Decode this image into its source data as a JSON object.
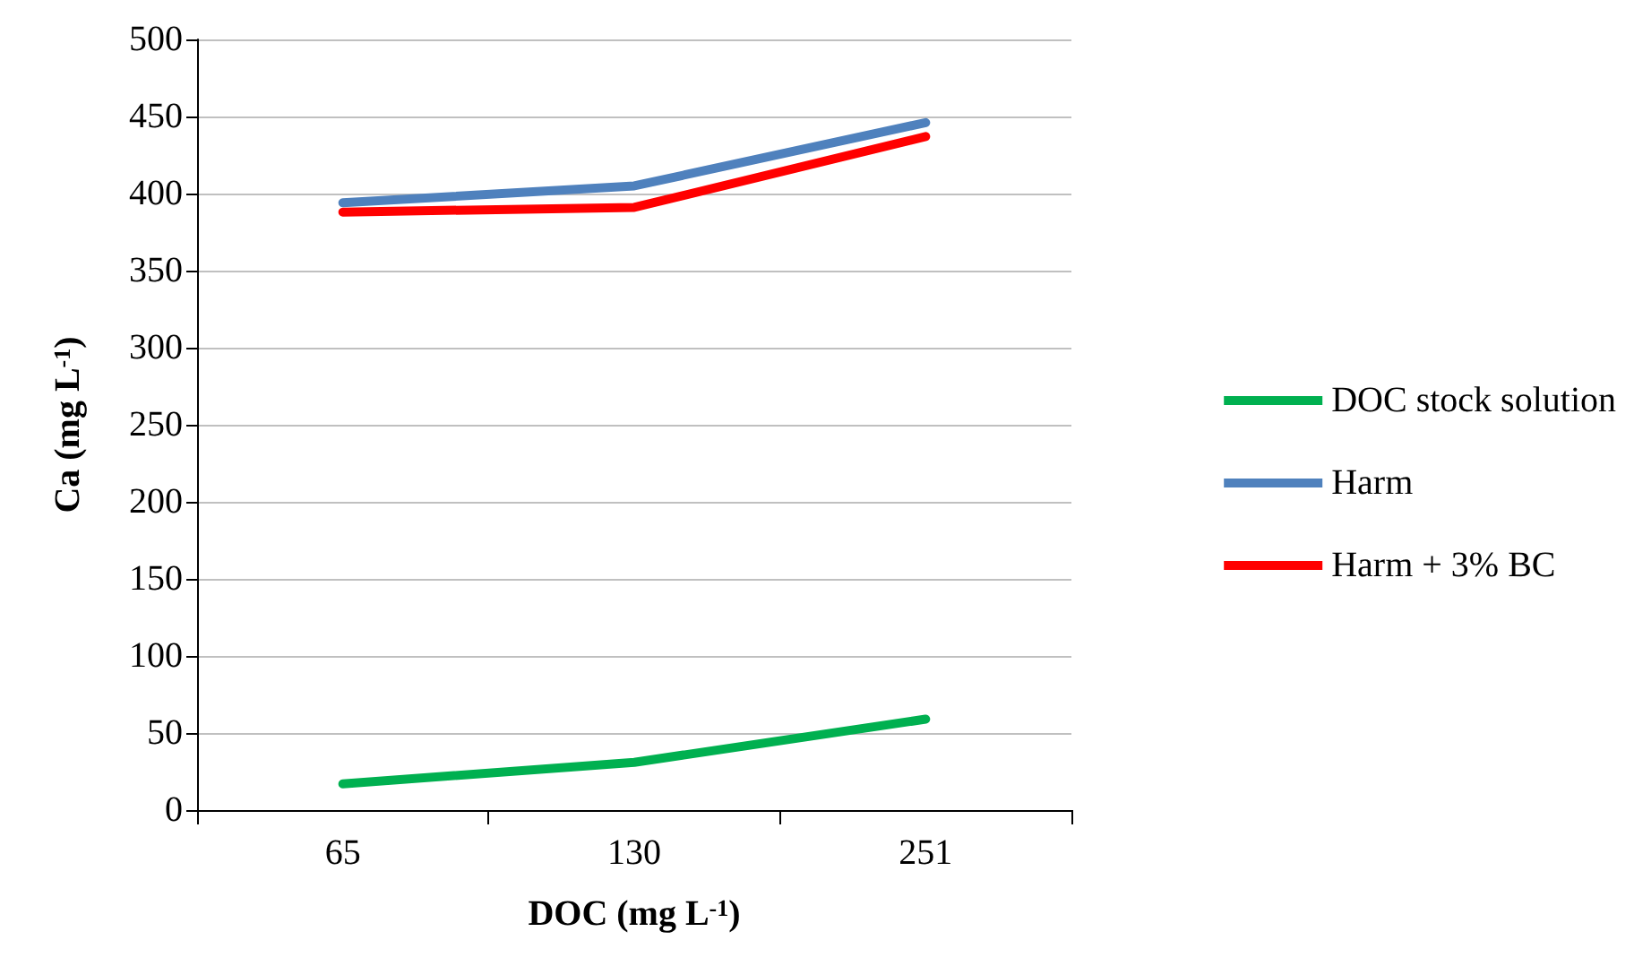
{
  "chart_data": {
    "type": "line",
    "xlabel": "DOC (mg L$^{-1}$)",
    "ylabel": "Ca (mg L$^{-1}$)",
    "categories": [
      "65",
      "130",
      "251"
    ],
    "series": [
      {
        "name": "DOC stock solution",
        "color": "#00b050",
        "values": [
          17,
          31,
          59
        ]
      },
      {
        "name": "Harm",
        "color": "#4f81bd",
        "values": [
          394,
          405,
          446
        ]
      },
      {
        "name": "Harm + 3% BC",
        "color": "#ff0000",
        "values": [
          388,
          391,
          437
        ]
      }
    ],
    "ylim": [
      0,
      500
    ],
    "yticks": [
      0,
      50,
      100,
      150,
      200,
      250,
      300,
      350,
      400,
      450,
      500
    ],
    "grid": "y",
    "legend": "right",
    "marker": "none",
    "line_style": "solid"
  }
}
